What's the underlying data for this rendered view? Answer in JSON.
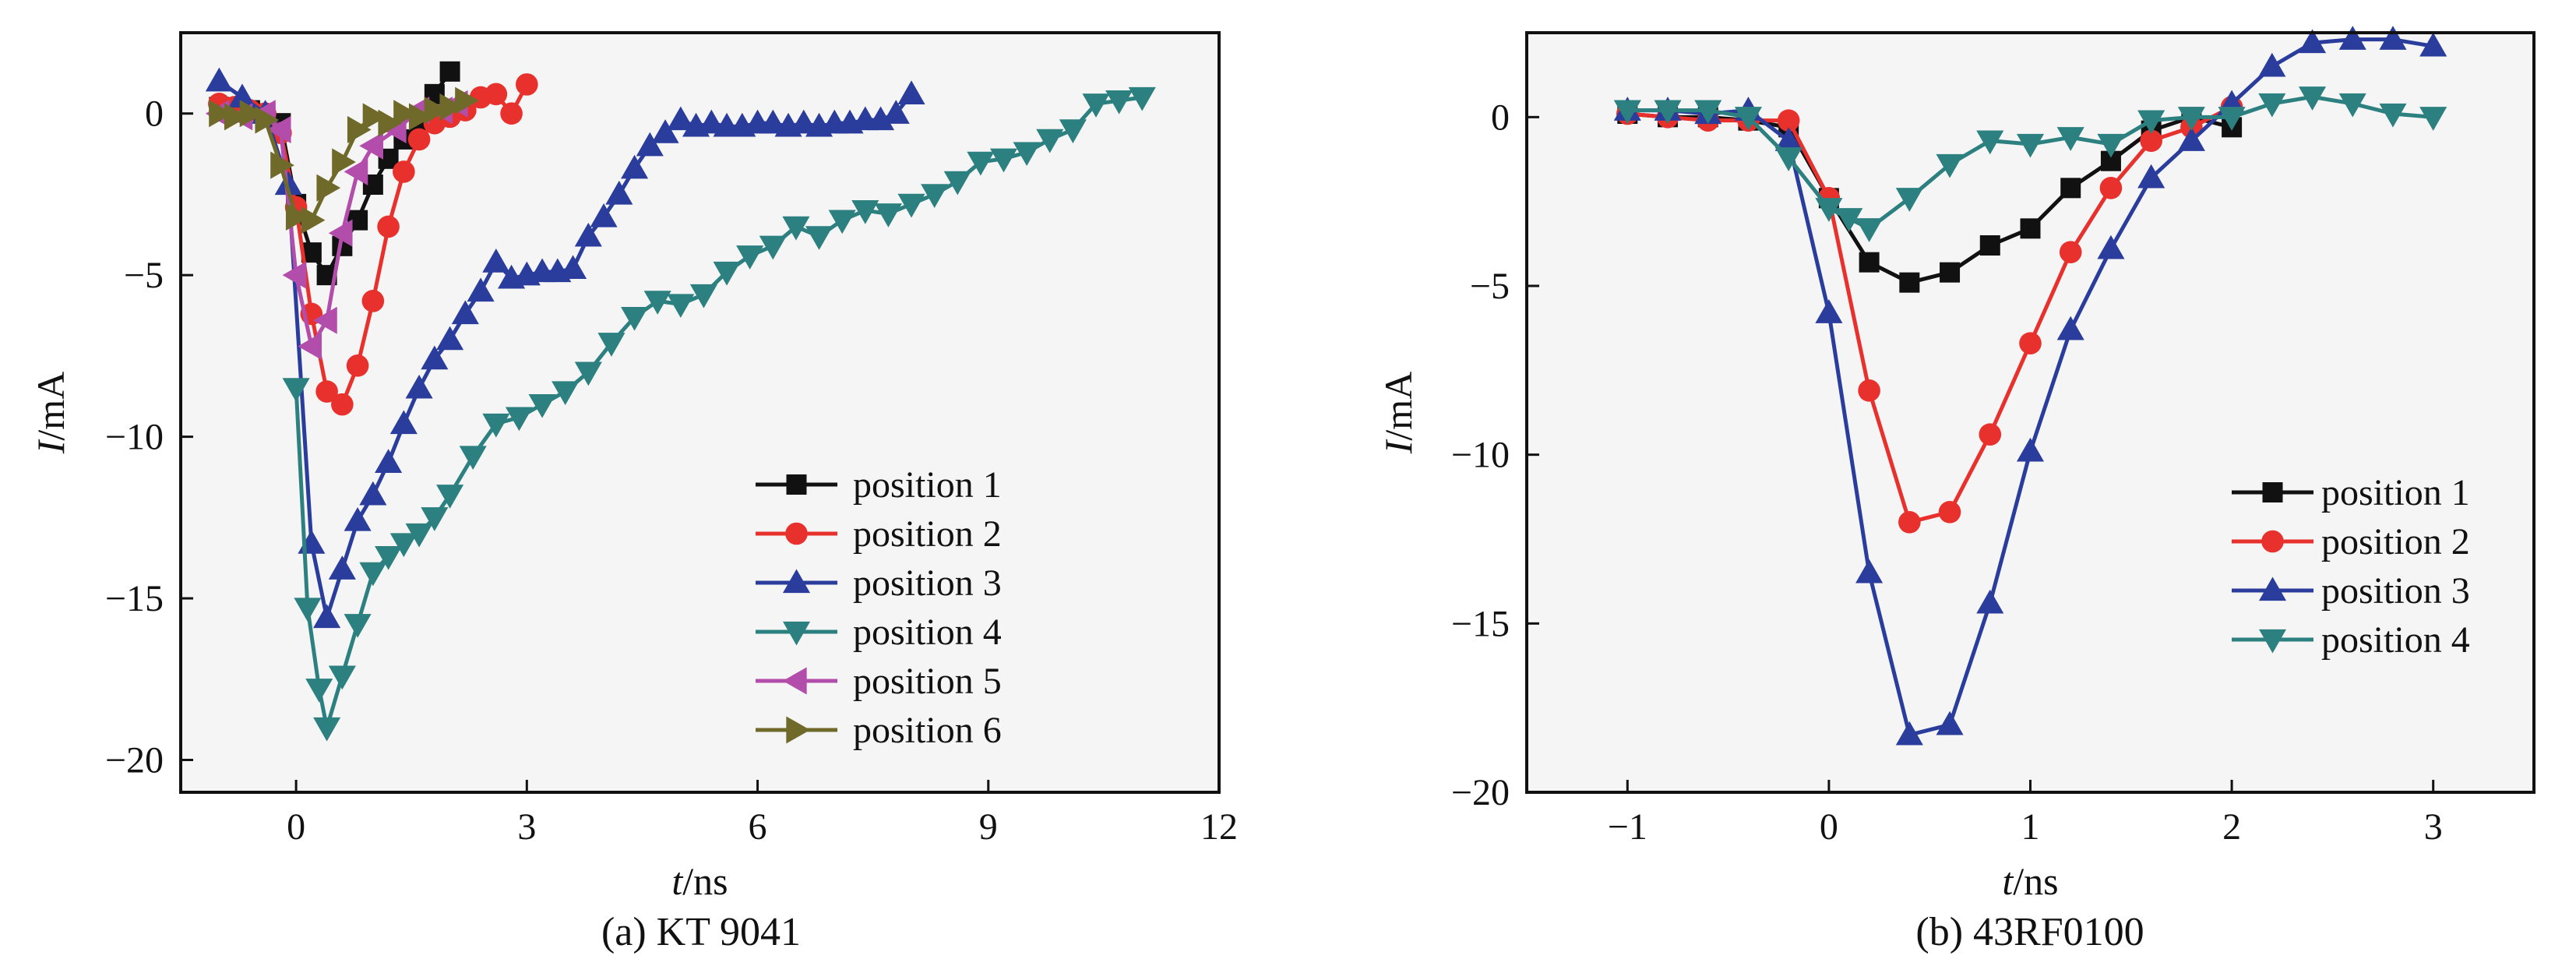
{
  "chart_data": [
    {
      "type": "line",
      "caption": "(a) KT 9041",
      "xlabel": {
        "italic": "t",
        "unit": "/ns"
      },
      "ylabel": {
        "italic": "I",
        "unit": "/mA"
      },
      "xlim": [
        -1.5,
        12
      ],
      "ylim": [
        -21,
        2.5
      ],
      "xticks": [
        0,
        3,
        6,
        9,
        12
      ],
      "yticks": [
        0,
        -5,
        -10,
        -15,
        -20
      ],
      "grid": false,
      "legend_position": "lower-right",
      "series": [
        {
          "name": "position 1",
          "color": "#111111",
          "marker": "square",
          "x": [
            -1.0,
            -0.8,
            -0.6,
            -0.4,
            -0.2,
            0.0,
            0.2,
            0.4,
            0.6,
            0.8,
            1.0,
            1.2,
            1.4,
            1.6,
            1.8,
            2.0
          ],
          "y": [
            0.2,
            0.1,
            0.1,
            0.0,
            -0.3,
            -2.8,
            -4.3,
            -5.0,
            -4.1,
            -3.3,
            -2.2,
            -1.4,
            -0.8,
            -0.2,
            0.6,
            1.3
          ]
        },
        {
          "name": "position 2",
          "color": "#e8302c",
          "marker": "circle",
          "x": [
            -1.0,
            -0.8,
            -0.6,
            -0.4,
            -0.2,
            0.0,
            0.2,
            0.4,
            0.6,
            0.8,
            1.0,
            1.2,
            1.4,
            1.6,
            1.8,
            2.0,
            2.2,
            2.4,
            2.6,
            2.8,
            3.0
          ],
          "y": [
            0.3,
            0.2,
            0.1,
            0.0,
            -0.6,
            -2.9,
            -6.2,
            -8.6,
            -9.0,
            -7.8,
            -5.8,
            -3.5,
            -1.8,
            -0.8,
            -0.3,
            -0.1,
            0.1,
            0.5,
            0.6,
            0.0,
            0.9
          ]
        },
        {
          "name": "position 3",
          "color": "#2a3d9c",
          "marker": "triangle-up",
          "x": [
            -1.0,
            -0.7,
            -0.4,
            -0.1,
            0.2,
            0.4,
            0.6,
            0.8,
            1.0,
            1.2,
            1.4,
            1.6,
            1.8,
            2.0,
            2.2,
            2.4,
            2.6,
            2.8,
            3.0,
            3.2,
            3.4,
            3.6,
            3.8,
            4.0,
            4.2,
            4.4,
            4.6,
            4.8,
            5.0,
            5.2,
            5.4,
            5.6,
            5.8,
            6.0,
            6.2,
            6.4,
            6.6,
            6.8,
            7.0,
            7.2,
            7.4,
            7.6,
            7.8,
            8.0
          ],
          "y": [
            1.0,
            0.5,
            0.0,
            -2.2,
            -13.3,
            -15.6,
            -14.1,
            -12.6,
            -11.8,
            -10.8,
            -9.6,
            -8.5,
            -7.6,
            -7.0,
            -6.2,
            -5.5,
            -4.6,
            -5.1,
            -5.0,
            -4.9,
            -4.9,
            -4.8,
            -3.8,
            -3.2,
            -2.5,
            -1.7,
            -1.0,
            -0.6,
            -0.2,
            -0.4,
            -0.3,
            -0.4,
            -0.4,
            -0.3,
            -0.3,
            -0.4,
            -0.3,
            -0.4,
            -0.3,
            -0.3,
            -0.2,
            -0.2,
            0.0,
            0.6
          ]
        },
        {
          "name": "position 4",
          "color": "#2d8080",
          "marker": "triangle-down",
          "x": [
            0.0,
            0.15,
            0.3,
            0.4,
            0.6,
            0.8,
            1.0,
            1.2,
            1.4,
            1.6,
            1.8,
            2.0,
            2.3,
            2.6,
            2.9,
            3.2,
            3.5,
            3.8,
            4.1,
            4.4,
            4.7,
            5.0,
            5.3,
            5.6,
            5.9,
            6.2,
            6.5,
            6.8,
            7.1,
            7.4,
            7.7,
            8.0,
            8.3,
            8.6,
            8.9,
            9.2,
            9.5,
            9.8,
            10.1,
            10.4,
            10.7,
            11.0
          ],
          "y": [
            -8.5,
            -15.3,
            -17.8,
            -19.0,
            -17.4,
            -15.8,
            -14.2,
            -13.7,
            -13.3,
            -13.0,
            -12.5,
            -11.8,
            -10.6,
            -9.6,
            -9.4,
            -9.0,
            -8.6,
            -8.0,
            -7.1,
            -6.3,
            -5.8,
            -5.9,
            -5.6,
            -4.9,
            -4.4,
            -4.1,
            -3.5,
            -3.8,
            -3.3,
            -3.0,
            -3.1,
            -2.8,
            -2.5,
            -2.1,
            -1.5,
            -1.4,
            -1.2,
            -0.8,
            -0.5,
            0.3,
            0.4,
            0.5
          ]
        },
        {
          "name": "position 5",
          "color": "#b24dac",
          "marker": "triangle-left",
          "x": [
            -1.0,
            -0.7,
            -0.4,
            -0.2,
            0.0,
            0.2,
            0.4,
            0.6,
            0.8,
            1.0,
            1.3,
            1.6,
            1.9,
            2.1
          ],
          "y": [
            0.0,
            -0.1,
            0.0,
            -0.5,
            -5.0,
            -7.2,
            -6.4,
            -3.7,
            -1.8,
            -1.0,
            -0.5,
            0.1,
            0.1,
            0.3
          ]
        },
        {
          "name": "position 6",
          "color": "#6f6a2a",
          "marker": "triangle-right",
          "x": [
            -1.0,
            -0.8,
            -0.6,
            -0.4,
            -0.2,
            0.0,
            0.2,
            0.4,
            0.6,
            0.8,
            1.0,
            1.2,
            1.4,
            1.6,
            1.8,
            2.0,
            2.2
          ],
          "y": [
            0.0,
            -0.1,
            0.0,
            -0.2,
            -1.6,
            -3.2,
            -3.3,
            -2.3,
            -1.5,
            -0.5,
            -0.1,
            -0.3,
            0.0,
            -0.1,
            0.1,
            0.2,
            0.4
          ]
        }
      ]
    },
    {
      "type": "line",
      "caption": "(b) 43RF0100",
      "xlabel": {
        "italic": "t",
        "unit": "/ns"
      },
      "ylabel": {
        "italic": "I",
        "unit": "/mA"
      },
      "xlim": [
        -1.5,
        3.5
      ],
      "ylim": [
        -20,
        2.5
      ],
      "xticks": [
        -1,
        0,
        1,
        2,
        3
      ],
      "yticks": [
        0,
        -5,
        -10,
        -15,
        -20
      ],
      "grid": false,
      "legend_position": "lower-right",
      "series": [
        {
          "name": "position 1",
          "color": "#111111",
          "marker": "square",
          "x": [
            -1.0,
            -0.8,
            -0.6,
            -0.4,
            -0.2,
            0.0,
            0.2,
            0.4,
            0.6,
            0.8,
            1.0,
            1.2,
            1.4,
            1.6,
            1.8,
            2.0
          ],
          "y": [
            0.1,
            0.0,
            0.0,
            -0.1,
            -0.3,
            -2.4,
            -4.3,
            -4.9,
            -4.6,
            -3.8,
            -3.3,
            -2.1,
            -1.3,
            -0.4,
            0.0,
            -0.3
          ]
        },
        {
          "name": "position 2",
          "color": "#e8302c",
          "marker": "circle",
          "x": [
            -1.0,
            -0.8,
            -0.6,
            -0.4,
            -0.2,
            0.0,
            0.2,
            0.4,
            0.6,
            0.8,
            1.0,
            1.2,
            1.4,
            1.6,
            1.8,
            2.0
          ],
          "y": [
            0.1,
            0.0,
            -0.1,
            -0.1,
            -0.1,
            -2.4,
            -8.1,
            -12.0,
            -11.7,
            -9.4,
            -6.7,
            -4.0,
            -2.1,
            -0.7,
            -0.3,
            0.3
          ]
        },
        {
          "name": "position 3",
          "color": "#2a3d9c",
          "marker": "triangle-up",
          "x": [
            -1.0,
            -0.8,
            -0.6,
            -0.4,
            -0.2,
            0.0,
            0.2,
            0.4,
            0.6,
            0.8,
            1.0,
            1.2,
            1.4,
            1.6,
            1.8,
            2.0,
            2.2,
            2.4,
            2.6,
            2.8,
            3.0
          ],
          "y": [
            0.2,
            0.2,
            0.1,
            0.2,
            -0.7,
            -5.8,
            -13.5,
            -18.3,
            -18.0,
            -14.4,
            -9.9,
            -6.3,
            -3.9,
            -1.8,
            -0.7,
            0.4,
            1.5,
            2.2,
            2.3,
            2.3,
            2.1
          ]
        },
        {
          "name": "position 4",
          "color": "#2d8080",
          "marker": "triangle-down",
          "x": [
            -1.0,
            -0.8,
            -0.6,
            -0.4,
            -0.2,
            0.0,
            0.1,
            0.2,
            0.4,
            0.6,
            0.8,
            1.0,
            1.2,
            1.4,
            1.6,
            1.8,
            2.0,
            2.2,
            2.4,
            2.6,
            2.8,
            3.0
          ],
          "y": [
            0.2,
            0.2,
            0.2,
            0.0,
            -1.2,
            -2.7,
            -3.0,
            -3.3,
            -2.4,
            -1.4,
            -0.7,
            -0.8,
            -0.6,
            -0.8,
            -0.1,
            0.0,
            0.0,
            0.4,
            0.6,
            0.4,
            0.1,
            0.0
          ]
        }
      ]
    }
  ]
}
